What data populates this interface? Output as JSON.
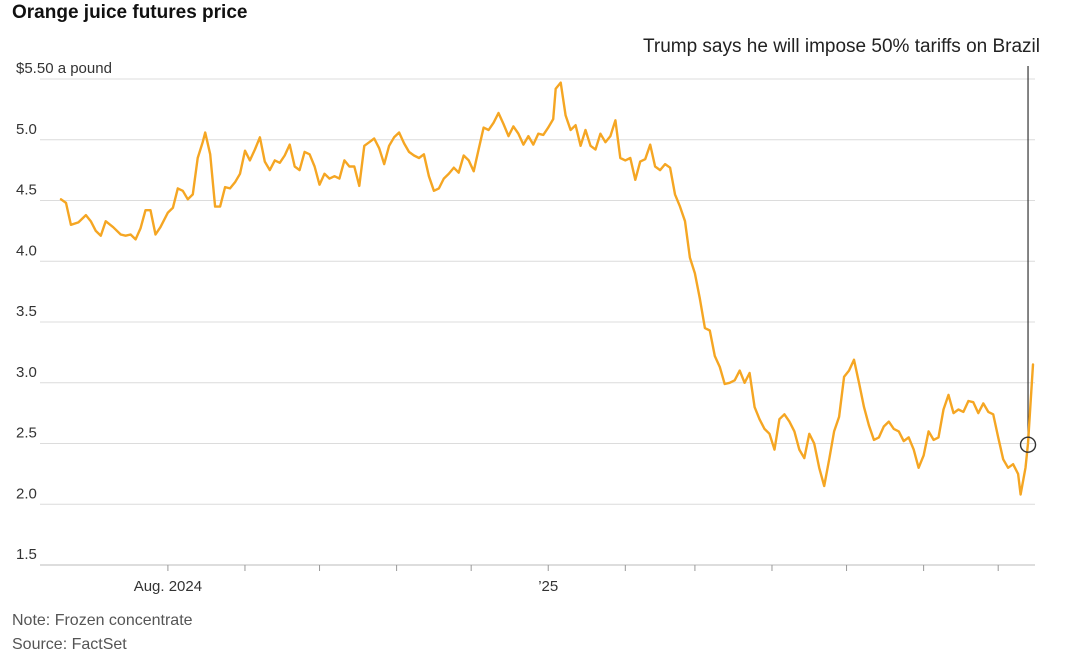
{
  "chart_data": {
    "type": "line",
    "title": "Orange juice futures price",
    "note": "Note: Frozen concentrate",
    "source": "Source: FactSet",
    "y_unit_label": "$5.50 a pound",
    "ylim": [
      1.5,
      5.5
    ],
    "yticks": [
      {
        "value": 5.5,
        "label": "$5.50 a pound"
      },
      {
        "value": 5.0,
        "label": "5.0"
      },
      {
        "value": 4.5,
        "label": "4.5"
      },
      {
        "value": 4.0,
        "label": "4.0"
      },
      {
        "value": 3.5,
        "label": "3.5"
      },
      {
        "value": 3.0,
        "label": "3.0"
      },
      {
        "value": 2.5,
        "label": "2.5"
      },
      {
        "value": 2.0,
        "label": "2.0"
      },
      {
        "value": 1.5,
        "label": "1.5"
      }
    ],
    "xlim": [
      "2024-06-19",
      "2025-07-15"
    ],
    "xticks": [
      {
        "date": "2024-08-01",
        "label": "Aug. 2024"
      },
      {
        "date": "2024-09-01",
        "label": ""
      },
      {
        "date": "2024-10-01",
        "label": ""
      },
      {
        "date": "2024-11-01",
        "label": ""
      },
      {
        "date": "2024-12-01",
        "label": ""
      },
      {
        "date": "2025-01-01",
        "label": "’25"
      },
      {
        "date": "2025-02-01",
        "label": ""
      },
      {
        "date": "2025-03-01",
        "label": ""
      },
      {
        "date": "2025-04-01",
        "label": ""
      },
      {
        "date": "2025-05-01",
        "label": ""
      },
      {
        "date": "2025-06-01",
        "label": ""
      },
      {
        "date": "2025-07-01",
        "label": ""
      }
    ],
    "grid": true,
    "color": "#f5a623",
    "series": [
      {
        "values": [
          [
            "2024-06-19",
            4.51
          ],
          [
            "2024-06-21",
            4.48
          ],
          [
            "2024-06-23",
            4.3
          ],
          [
            "2024-06-26",
            4.32
          ],
          [
            "2024-06-29",
            4.38
          ],
          [
            "2024-07-01",
            4.33
          ],
          [
            "2024-07-03",
            4.25
          ],
          [
            "2024-07-05",
            4.21
          ],
          [
            "2024-07-07",
            4.33
          ],
          [
            "2024-07-10",
            4.28
          ],
          [
            "2024-07-13",
            4.22
          ],
          [
            "2024-07-15",
            4.21
          ],
          [
            "2024-07-17",
            4.22
          ],
          [
            "2024-07-19",
            4.18
          ],
          [
            "2024-07-21",
            4.27
          ],
          [
            "2024-07-23",
            4.42
          ],
          [
            "2024-07-25",
            4.42
          ],
          [
            "2024-07-27",
            4.22
          ],
          [
            "2024-07-29",
            4.28
          ],
          [
            "2024-08-01",
            4.4
          ],
          [
            "2024-08-03",
            4.44
          ],
          [
            "2024-08-05",
            4.6
          ],
          [
            "2024-08-07",
            4.58
          ],
          [
            "2024-08-09",
            4.51
          ],
          [
            "2024-08-11",
            4.55
          ],
          [
            "2024-08-13",
            4.85
          ],
          [
            "2024-08-15",
            4.98
          ],
          [
            "2024-08-16",
            5.06
          ],
          [
            "2024-08-18",
            4.88
          ],
          [
            "2024-08-20",
            4.45
          ],
          [
            "2024-08-22",
            4.45
          ],
          [
            "2024-08-24",
            4.61
          ],
          [
            "2024-08-26",
            4.6
          ],
          [
            "2024-08-28",
            4.65
          ],
          [
            "2024-08-30",
            4.72
          ],
          [
            "2024-09-01",
            4.91
          ],
          [
            "2024-09-03",
            4.83
          ],
          [
            "2024-09-05",
            4.92
          ],
          [
            "2024-09-07",
            5.02
          ],
          [
            "2024-09-09",
            4.82
          ],
          [
            "2024-09-11",
            4.75
          ],
          [
            "2024-09-13",
            4.83
          ],
          [
            "2024-09-15",
            4.81
          ],
          [
            "2024-09-17",
            4.87
          ],
          [
            "2024-09-19",
            4.96
          ],
          [
            "2024-09-21",
            4.78
          ],
          [
            "2024-09-23",
            4.75
          ],
          [
            "2024-09-25",
            4.9
          ],
          [
            "2024-09-27",
            4.88
          ],
          [
            "2024-09-29",
            4.78
          ],
          [
            "2024-10-01",
            4.63
          ],
          [
            "2024-10-03",
            4.72
          ],
          [
            "2024-10-05",
            4.68
          ],
          [
            "2024-10-07",
            4.7
          ],
          [
            "2024-10-09",
            4.68
          ],
          [
            "2024-10-11",
            4.83
          ],
          [
            "2024-10-13",
            4.78
          ],
          [
            "2024-10-15",
            4.78
          ],
          [
            "2024-10-17",
            4.62
          ],
          [
            "2024-10-19",
            4.95
          ],
          [
            "2024-10-21",
            4.98
          ],
          [
            "2024-10-23",
            5.01
          ],
          [
            "2024-10-25",
            4.93
          ],
          [
            "2024-10-27",
            4.8
          ],
          [
            "2024-10-29",
            4.95
          ],
          [
            "2024-10-31",
            5.02
          ],
          [
            "2024-11-02",
            5.06
          ],
          [
            "2024-11-04",
            4.97
          ],
          [
            "2024-11-06",
            4.9
          ],
          [
            "2024-11-08",
            4.87
          ],
          [
            "2024-11-10",
            4.85
          ],
          [
            "2024-11-12",
            4.88
          ],
          [
            "2024-11-14",
            4.7
          ],
          [
            "2024-11-16",
            4.58
          ],
          [
            "2024-11-18",
            4.6
          ],
          [
            "2024-11-20",
            4.68
          ],
          [
            "2024-11-22",
            4.72
          ],
          [
            "2024-11-24",
            4.77
          ],
          [
            "2024-11-26",
            4.73
          ],
          [
            "2024-11-28",
            4.87
          ],
          [
            "2024-11-30",
            4.83
          ],
          [
            "2024-12-02",
            4.74
          ],
          [
            "2024-12-04",
            4.92
          ],
          [
            "2024-12-06",
            5.1
          ],
          [
            "2024-12-08",
            5.08
          ],
          [
            "2024-12-10",
            5.14
          ],
          [
            "2024-12-12",
            5.22
          ],
          [
            "2024-12-14",
            5.13
          ],
          [
            "2024-12-16",
            5.03
          ],
          [
            "2024-12-18",
            5.11
          ],
          [
            "2024-12-20",
            5.05
          ],
          [
            "2024-12-22",
            4.96
          ],
          [
            "2024-12-24",
            5.03
          ],
          [
            "2024-12-26",
            4.96
          ],
          [
            "2024-12-28",
            5.05
          ],
          [
            "2024-12-30",
            5.04
          ],
          [
            "2025-01-01",
            5.1
          ],
          [
            "2025-01-03",
            5.17
          ],
          [
            "2025-01-04",
            5.42
          ],
          [
            "2025-01-06",
            5.47
          ],
          [
            "2025-01-08",
            5.2
          ],
          [
            "2025-01-10",
            5.08
          ],
          [
            "2025-01-12",
            5.12
          ],
          [
            "2025-01-14",
            4.95
          ],
          [
            "2025-01-16",
            5.08
          ],
          [
            "2025-01-18",
            4.95
          ],
          [
            "2025-01-20",
            4.92
          ],
          [
            "2025-01-22",
            5.05
          ],
          [
            "2025-01-24",
            4.98
          ],
          [
            "2025-01-26",
            5.03
          ],
          [
            "2025-01-28",
            5.16
          ],
          [
            "2025-01-30",
            4.85
          ],
          [
            "2025-02-01",
            4.83
          ],
          [
            "2025-02-03",
            4.85
          ],
          [
            "2025-02-05",
            4.67
          ],
          [
            "2025-02-07",
            4.82
          ],
          [
            "2025-02-09",
            4.84
          ],
          [
            "2025-02-11",
            4.96
          ],
          [
            "2025-02-13",
            4.78
          ],
          [
            "2025-02-15",
            4.75
          ],
          [
            "2025-02-17",
            4.8
          ],
          [
            "2025-02-19",
            4.77
          ],
          [
            "2025-02-21",
            4.55
          ],
          [
            "2025-02-23",
            4.45
          ],
          [
            "2025-02-25",
            4.33
          ],
          [
            "2025-02-27",
            4.03
          ],
          [
            "2025-03-01",
            3.9
          ],
          [
            "2025-03-03",
            3.69
          ],
          [
            "2025-03-05",
            3.45
          ],
          [
            "2025-03-07",
            3.43
          ],
          [
            "2025-03-09",
            3.22
          ],
          [
            "2025-03-11",
            3.13
          ],
          [
            "2025-03-13",
            2.99
          ],
          [
            "2025-03-15",
            3.0
          ],
          [
            "2025-03-17",
            3.02
          ],
          [
            "2025-03-19",
            3.1
          ],
          [
            "2025-03-21",
            3.0
          ],
          [
            "2025-03-23",
            3.08
          ],
          [
            "2025-03-25",
            2.8
          ],
          [
            "2025-03-27",
            2.7
          ],
          [
            "2025-03-29",
            2.62
          ],
          [
            "2025-03-31",
            2.58
          ],
          [
            "2025-04-02",
            2.45
          ],
          [
            "2025-04-04",
            2.7
          ],
          [
            "2025-04-06",
            2.74
          ],
          [
            "2025-04-08",
            2.68
          ],
          [
            "2025-04-10",
            2.6
          ],
          [
            "2025-04-12",
            2.45
          ],
          [
            "2025-04-14",
            2.38
          ],
          [
            "2025-04-16",
            2.58
          ],
          [
            "2025-04-18",
            2.5
          ],
          [
            "2025-04-20",
            2.3
          ],
          [
            "2025-04-22",
            2.15
          ],
          [
            "2025-04-24",
            2.37
          ],
          [
            "2025-04-26",
            2.6
          ],
          [
            "2025-04-28",
            2.72
          ],
          [
            "2025-04-30",
            3.05
          ],
          [
            "2025-05-02",
            3.1
          ],
          [
            "2025-05-04",
            3.19
          ],
          [
            "2025-05-06",
            3.0
          ],
          [
            "2025-05-08",
            2.8
          ],
          [
            "2025-05-10",
            2.65
          ],
          [
            "2025-05-12",
            2.53
          ],
          [
            "2025-05-14",
            2.55
          ],
          [
            "2025-05-16",
            2.64
          ],
          [
            "2025-05-18",
            2.68
          ],
          [
            "2025-05-20",
            2.62
          ],
          [
            "2025-05-22",
            2.6
          ],
          [
            "2025-05-24",
            2.52
          ],
          [
            "2025-05-26",
            2.55
          ],
          [
            "2025-05-28",
            2.45
          ],
          [
            "2025-05-30",
            2.3
          ],
          [
            "2025-06-01",
            2.4
          ],
          [
            "2025-06-03",
            2.6
          ],
          [
            "2025-06-05",
            2.53
          ],
          [
            "2025-06-07",
            2.55
          ],
          [
            "2025-06-09",
            2.78
          ],
          [
            "2025-06-11",
            2.9
          ],
          [
            "2025-06-13",
            2.75
          ],
          [
            "2025-06-15",
            2.78
          ],
          [
            "2025-06-17",
            2.76
          ],
          [
            "2025-06-19",
            2.85
          ],
          [
            "2025-06-21",
            2.84
          ],
          [
            "2025-06-23",
            2.75
          ],
          [
            "2025-06-25",
            2.83
          ],
          [
            "2025-06-27",
            2.76
          ],
          [
            "2025-06-29",
            2.74
          ],
          [
            "2025-07-01",
            2.55
          ],
          [
            "2025-07-03",
            2.37
          ],
          [
            "2025-07-05",
            2.3
          ],
          [
            "2025-07-07",
            2.33
          ],
          [
            "2025-07-09",
            2.25
          ],
          [
            "2025-07-10",
            2.08
          ],
          [
            "2025-07-12",
            2.3
          ],
          [
            "2025-07-13",
            2.5
          ],
          [
            "2025-07-15",
            3.15
          ]
        ]
      }
    ],
    "annotations": [
      {
        "text": "Trump says he will impose 50% tariffs on Brazil",
        "date": "2025-07-13",
        "value": 2.49
      }
    ]
  }
}
